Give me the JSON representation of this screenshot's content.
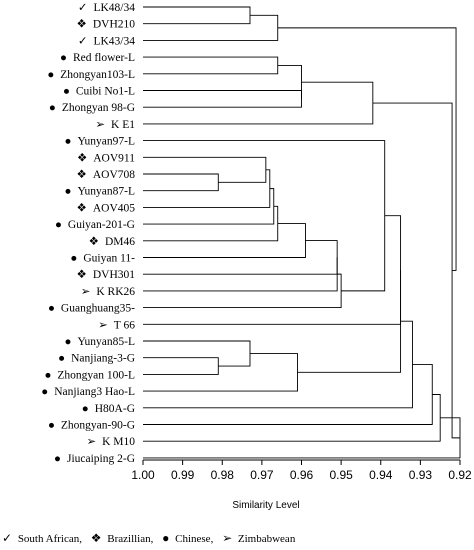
{
  "chart_data": {
    "type": "dendrogram",
    "xlabel": "Similarity Level",
    "xlim": [
      1.0,
      0.92
    ],
    "xticks": [
      "1.00",
      "0.99",
      "0.98",
      "0.97",
      "0.96",
      "0.95",
      "0.94",
      "0.93",
      "0.92"
    ],
    "leaves": [
      {
        "label": "LK48/34",
        "group": "South African"
      },
      {
        "label": "DVH210",
        "group": "Brazillian"
      },
      {
        "label": "LK43/34",
        "group": "South African"
      },
      {
        "label": "Red flower-L",
        "group": "Chinese"
      },
      {
        "label": "Zhongyan103-L",
        "group": "Chinese"
      },
      {
        "label": "Cuibi No1-L",
        "group": "Chinese"
      },
      {
        "label": "Zhongyan 98-G",
        "group": "Chinese"
      },
      {
        "label": "K E1",
        "group": "Zimbabwean"
      },
      {
        "label": "Yunyan97-L",
        "group": "Chinese"
      },
      {
        "label": "AOV911",
        "group": "Brazillian"
      },
      {
        "label": "AOV708",
        "group": "Brazillian"
      },
      {
        "label": "Yunyan87-L",
        "group": "Chinese"
      },
      {
        "label": "AOV405",
        "group": "Brazillian"
      },
      {
        "label": "Guiyan-201-G",
        "group": "Chinese"
      },
      {
        "label": "DM46",
        "group": "Brazillian"
      },
      {
        "label": "Guiyan 11-",
        "group": "Chinese"
      },
      {
        "label": "DVH301",
        "group": "Brazillian"
      },
      {
        "label": "K RK26",
        "group": "Zimbabwean"
      },
      {
        "label": "Guanghuang35-",
        "group": "Chinese"
      },
      {
        "label": "T 66",
        "group": "Zimbabwean"
      },
      {
        "label": "Yunyan85-L",
        "group": "Chinese"
      },
      {
        "label": "Nanjiang-3-G",
        "group": "Chinese"
      },
      {
        "label": "Zhongyan 100-L",
        "group": "Chinese"
      },
      {
        "label": "Nanjiang3 Hao-L",
        "group": "Chinese"
      },
      {
        "label": "H80A-G",
        "group": "Chinese"
      },
      {
        "label": "Zhongyan-90-G",
        "group": "Chinese"
      },
      {
        "label": "K M10",
        "group": "Zimbabwean"
      },
      {
        "label": "Jiucaiping 2-G",
        "group": "Chinese"
      }
    ],
    "merges": [
      {
        "a": "L0",
        "b": "L1",
        "height": 0.973
      },
      {
        "a": "L2",
        "b": "M0",
        "height": 0.966
      },
      {
        "a": "L3",
        "b": "L4",
        "height": 0.966
      },
      {
        "a": "L5",
        "b": "L6",
        "height": 0.96
      },
      {
        "a": "M2",
        "b": "M3",
        "height": 0.96
      },
      {
        "a": "M4",
        "b": "L7",
        "height": 0.942
      },
      {
        "a": "L10",
        "b": "L11",
        "height": 0.981
      },
      {
        "a": "L9",
        "b": "M6",
        "height": 0.969
      },
      {
        "a": "M7",
        "b": "L12",
        "height": 0.968
      },
      {
        "a": "M8",
        "b": "L13",
        "height": 0.967
      },
      {
        "a": "M9",
        "b": "L14",
        "height": 0.966
      },
      {
        "a": "M10",
        "b": "L15",
        "height": 0.959
      },
      {
        "a": "M11",
        "b": "L16",
        "height": 0.951
      },
      {
        "a": "M12",
        "b": "L17",
        "height": 0.951
      },
      {
        "a": "L21",
        "b": "L22",
        "height": 0.981
      },
      {
        "a": "L20",
        "b": "M14",
        "height": 0.973
      },
      {
        "a": "M15",
        "b": "L23",
        "height": 0.961
      },
      {
        "a": "M13",
        "b": "L18",
        "height": 0.95
      },
      {
        "a": "L8",
        "b": "M17",
        "height": 0.939
      },
      {
        "a": "M18",
        "b": "L19",
        "height": 0.935
      },
      {
        "a": "M19",
        "b": "M16",
        "height": 0.935
      },
      {
        "a": "M20",
        "b": "L24",
        "height": 0.932
      },
      {
        "a": "M21",
        "b": "L25",
        "height": 0.927
      },
      {
        "a": "M22",
        "b": "L26",
        "height": 0.925
      },
      {
        "a": "M23",
        "b": "L27",
        "height": 0.92
      },
      {
        "a": "M5",
        "b": "M24",
        "height": 0.922
      },
      {
        "a": "M1",
        "b": "M25",
        "height": 0.921
      }
    ]
  },
  "symbols": {
    "South African": "✓",
    "Brazillian": "❖",
    "Chinese": "●",
    "Zimbabwean": "➢"
  },
  "legend": [
    {
      "symbol": "✓",
      "label": "South African,"
    },
    {
      "symbol": "❖",
      "label": "Brazillian,"
    },
    {
      "symbol": "●",
      "label": "Chinese,"
    },
    {
      "symbol": "➢",
      "label": "Zimbabwean"
    }
  ]
}
